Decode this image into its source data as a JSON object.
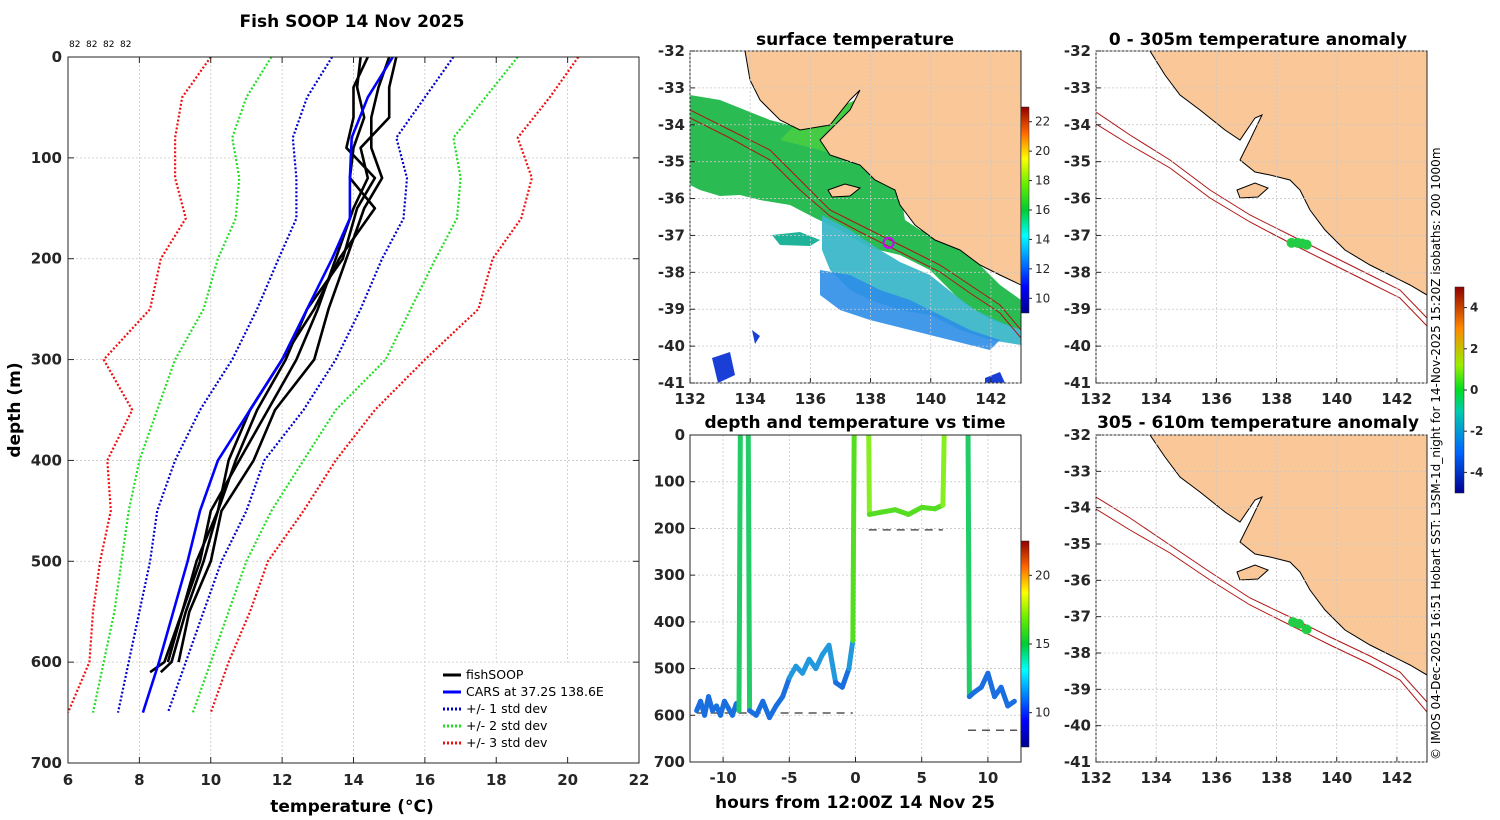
{
  "chart_data": [
    {
      "id": "profile",
      "type": "line",
      "title": "Fish SOOP 14 Nov 2025",
      "count_labels": [
        "82",
        "82",
        "82",
        "82"
      ],
      "xlabel": "temperature (°C)",
      "ylabel": "depth (m)",
      "xlim": [
        6,
        22
      ],
      "ylim": [
        0,
        700
      ],
      "xticks": [
        6,
        8,
        10,
        12,
        14,
        16,
        18,
        20,
        22
      ],
      "yticks": [
        0,
        100,
        200,
        300,
        400,
        500,
        600,
        700
      ],
      "legend": [
        "fishSOOP",
        "CARS at 37.2S 138.6E",
        "+/- 1 std dev",
        "+/- 2 std dev",
        "+/- 3 std dev"
      ],
      "legend_position": "bottom-right",
      "colors": {
        "fish": "#000000",
        "cars": "#0000ff",
        "sd1": "#0000cc",
        "sd2": "#22dd22",
        "sd3": "#ee1111"
      },
      "series": [
        {
          "name": "CARS",
          "depth": [
            0,
            40,
            80,
            120,
            160,
            200,
            250,
            300,
            350,
            400,
            450,
            500,
            550,
            600,
            650
          ],
          "temp": [
            15.1,
            14.4,
            13.95,
            13.9,
            13.9,
            13.4,
            12.7,
            12.0,
            11.1,
            10.2,
            9.7,
            9.35,
            8.95,
            8.55,
            8.1
          ]
        },
        {
          "name": "+1 std dev",
          "depth": [
            0,
            40,
            80,
            120,
            160,
            200,
            250,
            300,
            350,
            400,
            450,
            500,
            550,
            600,
            650
          ],
          "temp": [
            16.8,
            16.0,
            15.2,
            15.5,
            15.4,
            14.8,
            14.2,
            13.5,
            12.6,
            11.5,
            11.0,
            10.3,
            9.8,
            9.3,
            8.8
          ]
        },
        {
          "name": "-1 std dev",
          "depth": [
            0,
            40,
            80,
            120,
            160,
            200,
            250,
            300,
            350,
            400,
            450,
            500,
            550,
            600,
            650
          ],
          "temp": [
            13.4,
            12.7,
            12.3,
            12.4,
            12.4,
            11.9,
            11.3,
            10.6,
            9.7,
            9.0,
            8.5,
            8.3,
            8.0,
            7.7,
            7.4
          ]
        },
        {
          "name": "+2 std dev",
          "depth": [
            0,
            40,
            80,
            120,
            160,
            200,
            250,
            300,
            350,
            400,
            450,
            500,
            550,
            600,
            650
          ],
          "temp": [
            18.6,
            17.7,
            16.8,
            17.0,
            16.9,
            16.3,
            15.6,
            14.9,
            13.5,
            12.6,
            11.7,
            11.0,
            10.5,
            10.0,
            9.5
          ]
        },
        {
          "name": "-2 std dev",
          "depth": [
            0,
            40,
            80,
            120,
            160,
            200,
            250,
            300,
            350,
            400,
            450,
            500,
            550,
            600,
            650
          ],
          "temp": [
            11.7,
            11.0,
            10.6,
            10.8,
            10.7,
            10.2,
            9.8,
            9.0,
            8.5,
            8.0,
            7.7,
            7.5,
            7.3,
            7.0,
            6.7
          ]
        },
        {
          "name": "+3 std dev",
          "depth": [
            0,
            40,
            80,
            120,
            160,
            200,
            250,
            300,
            350,
            400,
            450,
            500,
            550,
            600,
            650
          ],
          "temp": [
            20.3,
            19.5,
            18.6,
            19.0,
            18.7,
            17.9,
            17.5,
            16.0,
            14.6,
            13.5,
            12.6,
            11.6,
            11.1,
            10.5,
            10.0
          ]
        },
        {
          "name": "-3 std dev",
          "depth": [
            0,
            40,
            80,
            120,
            160,
            200,
            250,
            300,
            350,
            400,
            450,
            500,
            550,
            600,
            650
          ],
          "temp": [
            10.0,
            9.2,
            9.0,
            9.0,
            9.3,
            8.6,
            8.3,
            7.0,
            7.8,
            7.1,
            7.2,
            6.9,
            6.7,
            6.6,
            6.0
          ]
        },
        {
          "name": "fishSOOP 1",
          "depth": [
            0,
            30,
            60,
            90,
            120,
            150,
            200,
            250,
            300,
            350,
            400,
            450,
            500,
            550,
            600,
            610
          ],
          "temp": [
            14.4,
            14.0,
            14.0,
            13.8,
            14.6,
            14.1,
            13.7,
            12.7,
            12.1,
            11.3,
            10.7,
            10.2,
            9.8,
            9.3,
            8.9,
            8.6
          ]
        },
        {
          "name": "fishSOOP 2",
          "depth": [
            0,
            30,
            60,
            90,
            120,
            150,
            200,
            250,
            300,
            350,
            400,
            450,
            500,
            550,
            600
          ],
          "temp": [
            15.0,
            14.7,
            14.5,
            14.5,
            14.8,
            14.3,
            13.8,
            13.3,
            12.9,
            11.8,
            11.2,
            10.3,
            10.0,
            9.4,
            9.1
          ]
        },
        {
          "name": "fishSOOP 3",
          "depth": [
            0,
            30,
            60,
            90,
            120,
            150,
            200,
            250,
            300,
            350,
            400,
            450,
            500,
            550,
            600
          ],
          "temp": [
            15.2,
            15.0,
            15.0,
            14.2,
            14.4,
            14.0,
            13.5,
            13.0,
            12.4,
            11.6,
            10.8,
            10.0,
            9.7,
            9.2,
            8.8
          ]
        },
        {
          "name": "fishSOOP 4",
          "depth": [
            0,
            30,
            60,
            90,
            120,
            150,
            200,
            250,
            300,
            350,
            400,
            450,
            500,
            550,
            600,
            610
          ],
          "temp": [
            14.2,
            14.1,
            14.3,
            14.0,
            13.9,
            14.6,
            13.6,
            12.9,
            12.0,
            11.1,
            10.5,
            10.2,
            9.6,
            9.2,
            8.7,
            8.3
          ]
        }
      ]
    },
    {
      "id": "sst",
      "type": "heatmap",
      "title": "surface temperature",
      "xlim": [
        132,
        143
      ],
      "ylim": [
        -41,
        -32
      ],
      "xticks": [
        132,
        134,
        136,
        138,
        140,
        142
      ],
      "yticks": [
        -32,
        -33,
        -34,
        -35,
        -36,
        -37,
        -38,
        -39,
        -40,
        -41
      ],
      "colorbar": {
        "ticks": [
          10,
          12,
          14,
          16,
          18,
          20,
          22
        ],
        "range": [
          9,
          23
        ]
      },
      "marker": {
        "lon": 138.6,
        "lat": -37.2
      }
    },
    {
      "id": "time",
      "type": "line",
      "title": "depth and temperature vs time",
      "xlabel": "hours from 12:00Z 14 Nov 25",
      "xlim": [
        -12.5,
        12.5
      ],
      "ylim": [
        0,
        700
      ],
      "xticks": [
        -10,
        -5,
        0,
        5,
        10
      ],
      "yticks": [
        0,
        100,
        200,
        300,
        400,
        500,
        600,
        700
      ],
      "colorbar": {
        "ticks": [
          10,
          15,
          20
        ],
        "range": [
          7.5,
          22.5
        ]
      },
      "bottom_markers": [
        {
          "x": [
            -12,
            -0.2
          ],
          "depth": 595
        },
        {
          "x": [
            1.0,
            6.6
          ],
          "depth": 203
        },
        {
          "x": [
            8.5,
            12.2
          ],
          "depth": 632
        }
      ],
      "segments": [
        {
          "x": [
            -12.0,
            -11.7,
            -11.4,
            -11.1,
            -10.8,
            -10.5,
            -10.2,
            -9.9,
            -9.6,
            -9.3,
            -9.0,
            -8.8
          ],
          "depth": [
            590,
            570,
            600,
            560,
            590,
            580,
            600,
            570,
            585,
            600,
            575,
            590
          ]
        },
        {
          "x": [
            -8.8,
            -8.7
          ],
          "depth": [
            590,
            0
          ]
        },
        {
          "x": [
            -8.1,
            -8.0
          ],
          "depth": [
            0,
            590
          ]
        },
        {
          "x": [
            -8.0,
            -7.5,
            -7.0,
            -6.5,
            -6.0,
            -5.5,
            -5.0,
            -4.5,
            -4.0,
            -3.5,
            -3.0,
            -2.5,
            -2.0,
            -1.5,
            -1.0,
            -0.5,
            -0.2
          ],
          "depth": [
            590,
            600,
            570,
            605,
            580,
            560,
            520,
            495,
            510,
            480,
            500,
            470,
            450,
            530,
            540,
            500,
            440
          ]
        },
        {
          "x": [
            -0.2,
            -0.1
          ],
          "depth": [
            440,
            0
          ]
        },
        {
          "x": [
            1.0,
            1.05
          ],
          "depth": [
            0,
            170
          ]
        },
        {
          "x": [
            1.05,
            2.0,
            3.0,
            4.0,
            5.0,
            6.0,
            6.6
          ],
          "depth": [
            170,
            165,
            160,
            170,
            155,
            158,
            150
          ]
        },
        {
          "x": [
            6.6,
            6.7
          ],
          "depth": [
            150,
            0
          ]
        },
        {
          "x": [
            8.5,
            8.6
          ],
          "depth": [
            0,
            560
          ]
        },
        {
          "x": [
            8.6,
            9.0,
            9.5,
            10.0,
            10.5,
            11.0,
            11.5,
            12.0
          ],
          "depth": [
            560,
            550,
            540,
            510,
            560,
            540,
            580,
            570
          ]
        }
      ]
    },
    {
      "id": "anom1",
      "type": "scatter",
      "title": "0 - 305m temperature anomaly",
      "xlim": [
        132,
        143
      ],
      "ylim": [
        -41,
        -32
      ],
      "xticks": [
        132,
        134,
        136,
        138,
        140,
        142
      ],
      "yticks": [
        -32,
        -33,
        -34,
        -35,
        -36,
        -37,
        -38,
        -39,
        -40,
        -41
      ],
      "points": [
        {
          "lon": 138.5,
          "lat": -37.2
        },
        {
          "lon": 138.7,
          "lat": -37.2
        },
        {
          "lon": 138.85,
          "lat": -37.22
        },
        {
          "lon": 139.0,
          "lat": -37.25
        }
      ]
    },
    {
      "id": "anom2",
      "type": "scatter",
      "title": "305 - 610m temperature anomaly",
      "xlim": [
        132,
        143
      ],
      "ylim": [
        -41,
        -32
      ],
      "xticks": [
        132,
        134,
        136,
        138,
        140,
        142
      ],
      "yticks": [
        -32,
        -33,
        -34,
        -35,
        -36,
        -37,
        -38,
        -39,
        -40,
        -41
      ],
      "points": [
        {
          "lon": 138.55,
          "lat": -37.15
        },
        {
          "lon": 138.75,
          "lat": -37.2
        },
        {
          "lon": 139.0,
          "lat": -37.35
        }
      ],
      "colorbar": {
        "ticks": [
          -4,
          -2,
          0,
          2,
          4
        ],
        "range": [
          -5,
          5
        ]
      }
    }
  ],
  "side_note": "© IMOS 04-Dec-2025 16:51 Hobart SST: L3SM-1d_night for 14-Nov-2025 15:20Z isobaths: 200  1000m"
}
